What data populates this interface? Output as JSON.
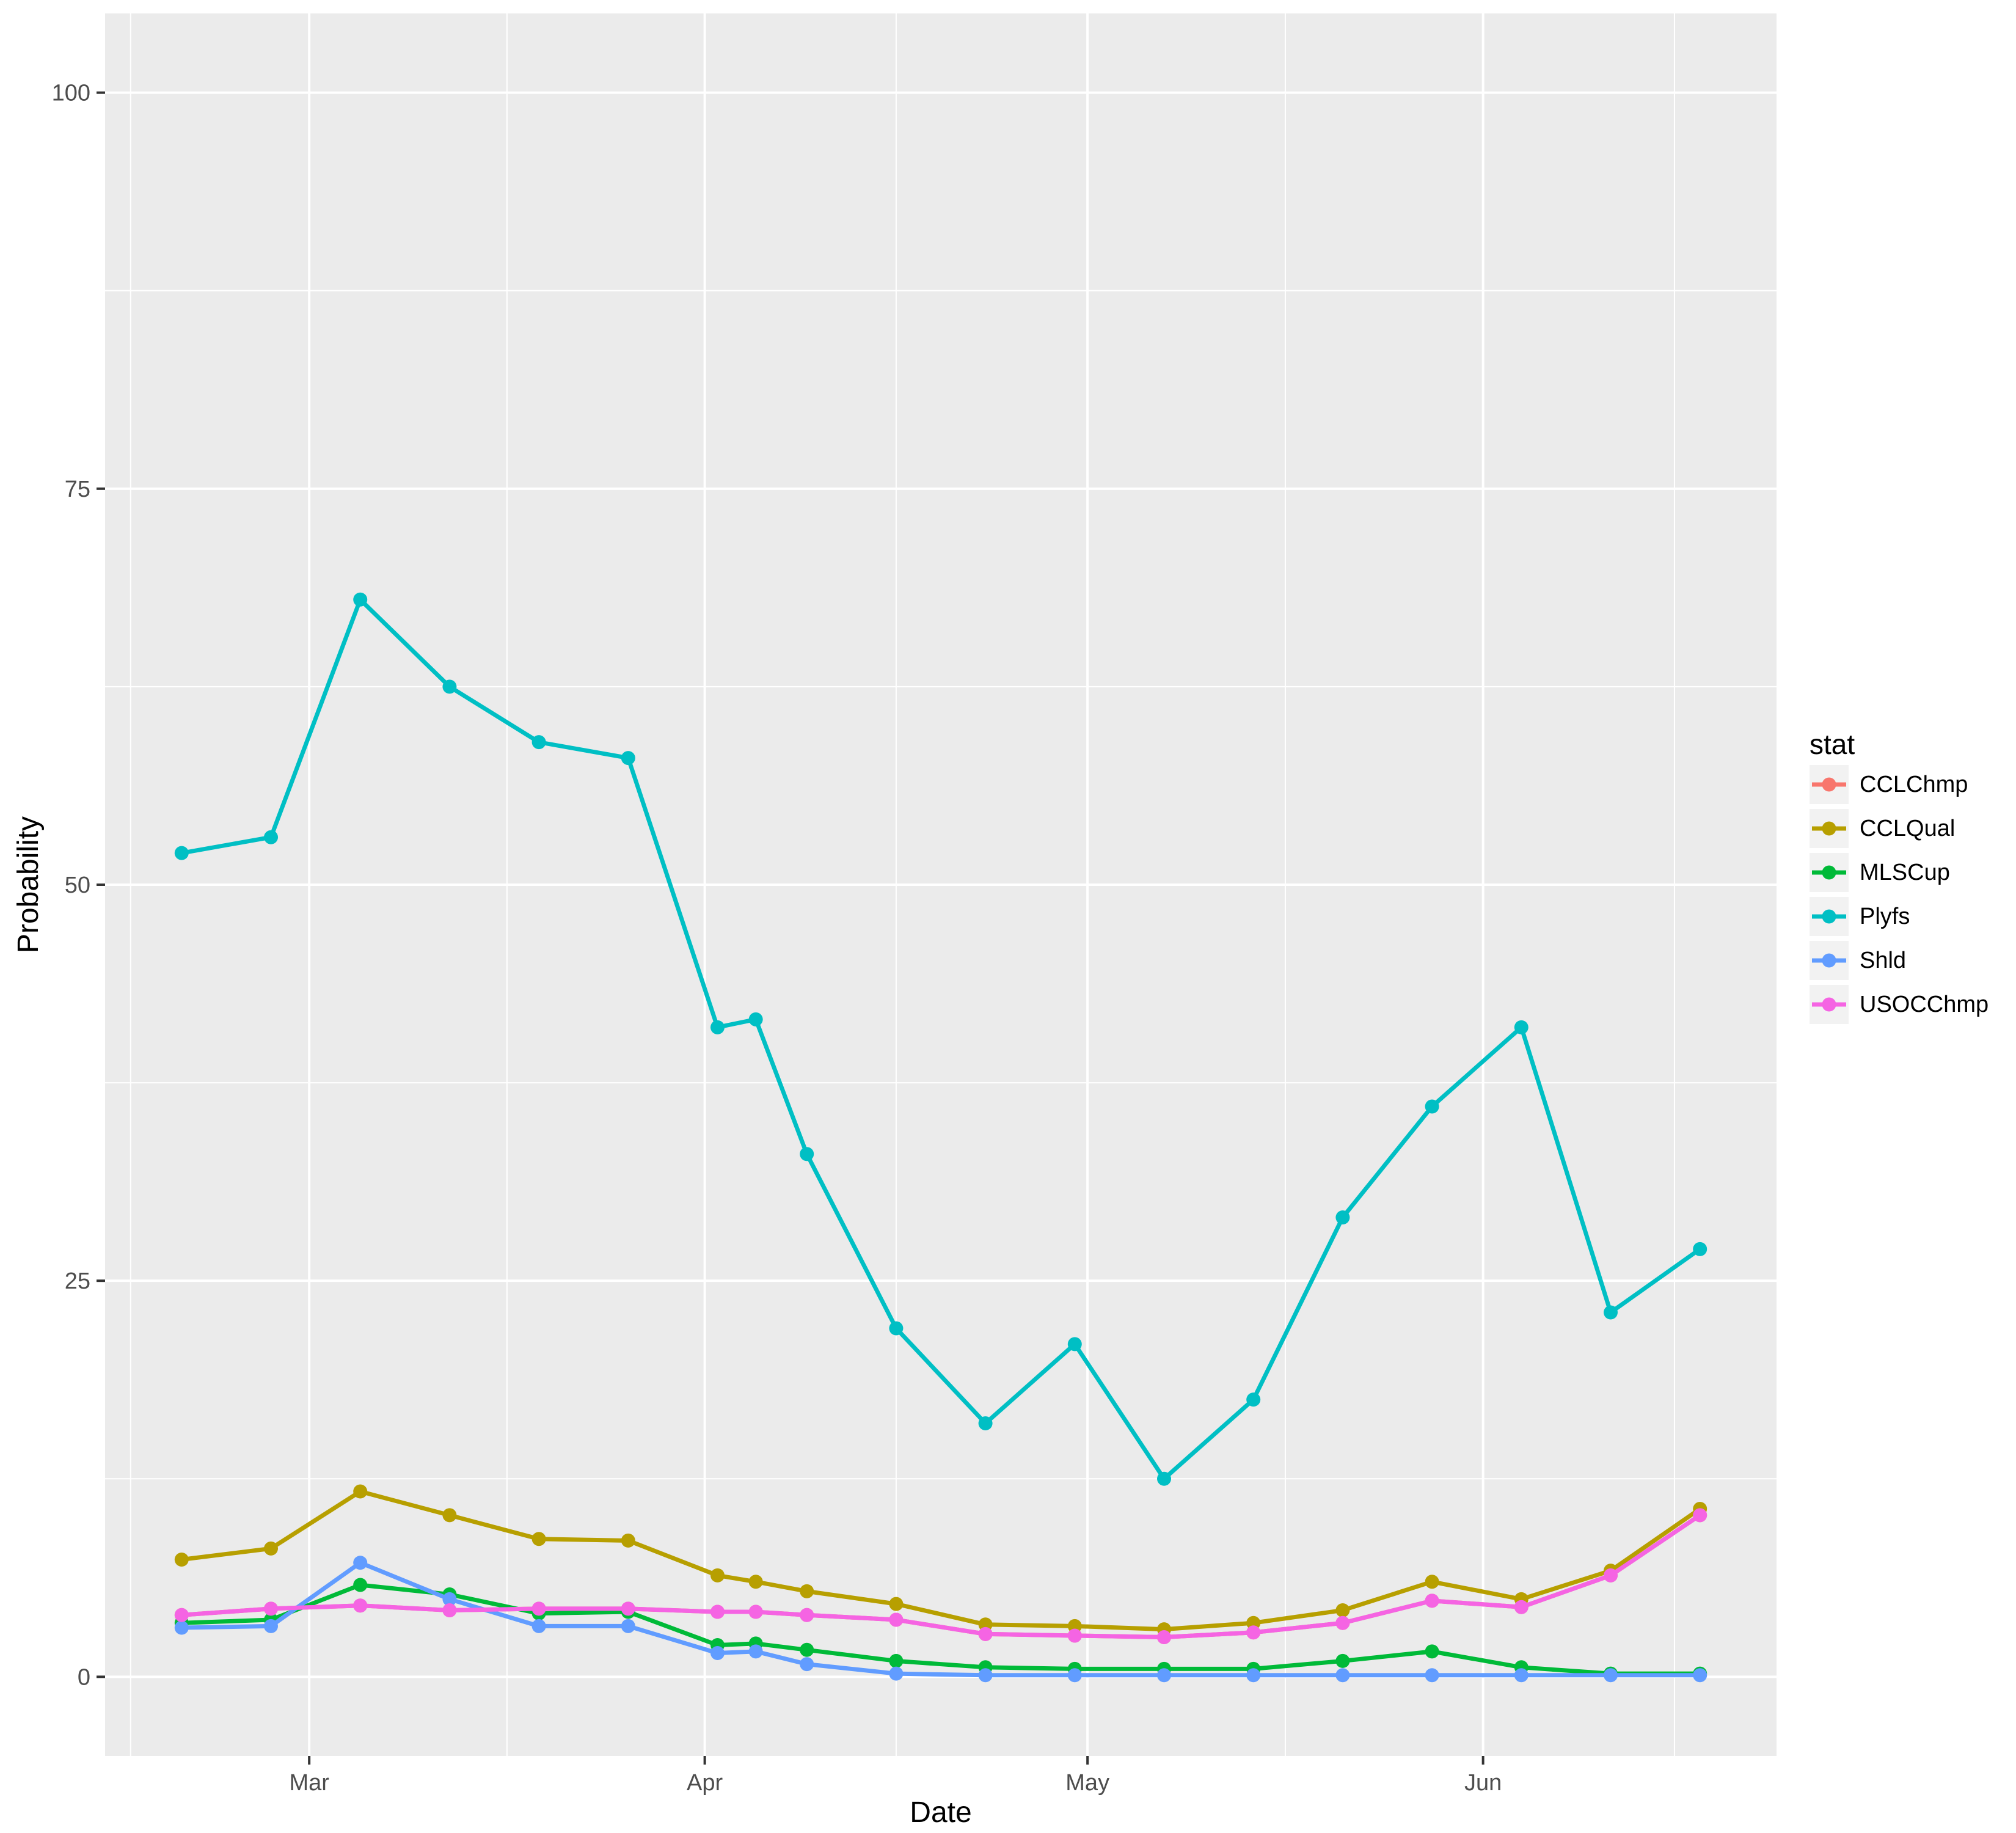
{
  "chart_data": {
    "type": "line",
    "title": "",
    "xlabel": "Date",
    "ylabel": "Probability",
    "legend_title": "stat",
    "legend_position": "right",
    "grid": true,
    "panel_bg": "#EBEBEB",
    "grid_color": "#FFFFFF",
    "tick_label_color": "#4D4D4D",
    "axis_title_color": "#000000",
    "legend_key_bg": "#F2F2F2",
    "ylim": [
      -5,
      105
    ],
    "xlim_days": [
      -6,
      125
    ],
    "y_major_breaks": [
      0,
      25,
      50,
      75,
      100
    ],
    "y_minor_breaks": [
      12.5,
      37.5,
      62.5,
      87.5
    ],
    "x_major_breaks": [
      {
        "label": "Mar",
        "day": 10
      },
      {
        "label": "Apr",
        "day": 41
      },
      {
        "label": "May",
        "day": 71
      },
      {
        "label": "Jun",
        "day": 102
      }
    ],
    "x_minor_breaks_days": [
      -4,
      25.5,
      56,
      86.5,
      117
    ],
    "x_points_days": [
      0,
      7,
      14,
      21,
      28,
      35,
      42,
      45,
      49,
      56,
      63,
      70,
      77,
      84,
      91,
      98,
      105,
      112,
      119
    ],
    "x_points_dates": [
      "Feb 19",
      "Feb 26",
      "Mar 5",
      "Mar 12",
      "Mar 19",
      "Mar 26",
      "Apr 2",
      "Apr 5",
      "Apr 9",
      "Apr 16",
      "Apr 23",
      "Apr 30",
      "May 7",
      "May 14",
      "May 21",
      "May 28",
      "Jun 4",
      "Jun 11",
      "Jun 18"
    ],
    "series": [
      {
        "name": "CCLChmp",
        "color": "#F8766D",
        "values": [
          3.9,
          4.3,
          4.5,
          4.2,
          4.3,
          4.3,
          4.1,
          4.1,
          3.9,
          3.6,
          2.7,
          2.6,
          2.5,
          2.8,
          3.4,
          4.8,
          4.4,
          6.4,
          10.2
        ]
      },
      {
        "name": "CCLQual",
        "color": "#B79F00",
        "values": [
          7.4,
          8.1,
          11.7,
          10.2,
          8.7,
          8.6,
          6.4,
          6.0,
          5.4,
          4.6,
          3.3,
          3.2,
          3.0,
          3.4,
          4.2,
          6.0,
          4.9,
          6.7,
          10.6
        ]
      },
      {
        "name": "MLSCup",
        "color": "#00BA38",
        "values": [
          3.4,
          3.6,
          5.8,
          5.2,
          4.0,
          4.1,
          2.0,
          2.1,
          1.7,
          1.0,
          0.6,
          0.5,
          0.5,
          0.5,
          1.0,
          1.6,
          0.6,
          0.2,
          0.2
        ]
      },
      {
        "name": "Plyfs",
        "color": "#00BFC4",
        "values": [
          52,
          53,
          68,
          62.5,
          59,
          58,
          41,
          41.5,
          33,
          22,
          16,
          21,
          12.5,
          17.5,
          29,
          36,
          41,
          23,
          27
        ]
      },
      {
        "name": "Shld",
        "color": "#619CFF",
        "values": [
          3.1,
          3.2,
          7.2,
          4.9,
          3.2,
          3.2,
          1.5,
          1.6,
          0.8,
          0.2,
          0.1,
          0.1,
          0.1,
          0.1,
          0.1,
          0.1,
          0.1,
          0.1,
          0.1
        ]
      },
      {
        "name": "USOCChmp",
        "color": "#F564E3",
        "values": [
          3.9,
          4.3,
          4.5,
          4.2,
          4.3,
          4.3,
          4.1,
          4.1,
          3.9,
          3.6,
          2.7,
          2.6,
          2.5,
          2.8,
          3.4,
          4.8,
          4.4,
          6.4,
          10.2
        ]
      }
    ]
  }
}
